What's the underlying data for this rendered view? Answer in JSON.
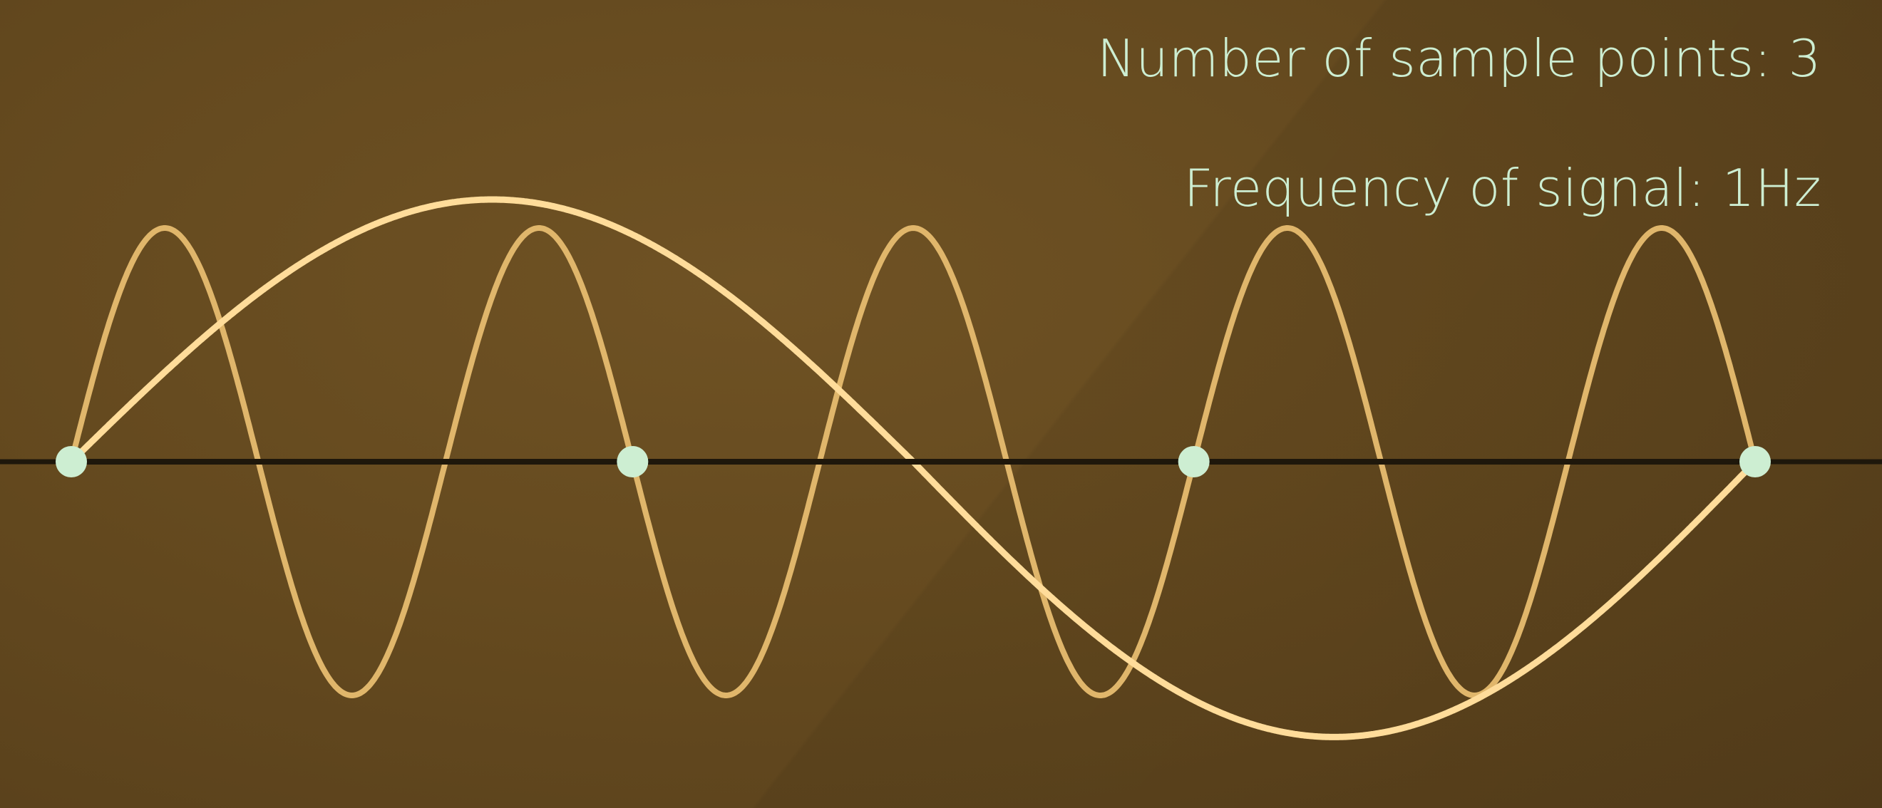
{
  "labels": {
    "sample_points": "Number of sample points: 3",
    "frequency": "Frequency of signal: 1Hz"
  },
  "colors": {
    "background": "#654a1f",
    "signal_high": "#e0b66b",
    "signal_alias": "#ffdc9a",
    "sample_stem": "#7fcf86",
    "sample_point": "#cdeed2",
    "reconstruction": "#1e170b",
    "axis": "#1e170b",
    "text": "#cdeed2"
  },
  "diagram": {
    "high_frequency_cycles": 4.5,
    "sample_count": 3,
    "aliased_cycles": 0.5
  }
}
